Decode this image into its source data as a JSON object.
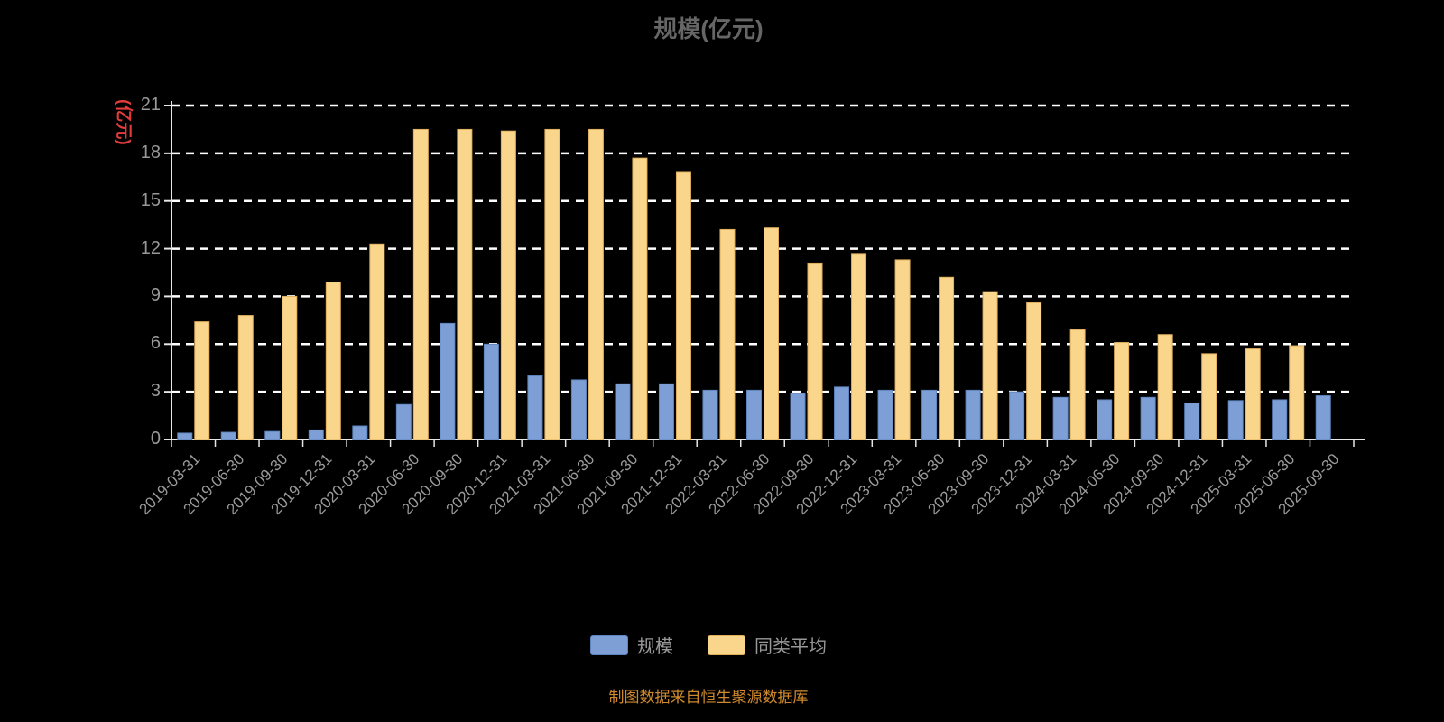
{
  "chart": {
    "title": "规模(亿元)",
    "y_axis_unit": "(亿元)",
    "footer": "制图数据来自恒生聚源数据库"
  },
  "colors": {
    "background": "#000000",
    "title_text": "#666666",
    "axis_line": "#e6e6e6",
    "grid_line": "#ffffff",
    "tick_label": "#999999",
    "y_unit_text": "#e23b3b",
    "footer_text": "#cf8a2d",
    "series_scale_fill": "#7e9fd5",
    "series_scale_border": "#5e85c0",
    "series_peer_fill": "#fad58c",
    "series_peer_border": "#dfaf5c"
  },
  "chart_data": {
    "type": "bar",
    "title": "规模(亿元)",
    "ylabel": "(亿元)",
    "xlabel": "",
    "ylim": [
      0,
      21
    ],
    "yticks": [
      0,
      3,
      6,
      9,
      12,
      15,
      18,
      21
    ],
    "grid": true,
    "grid_style": "dashed",
    "legend_position": "bottom",
    "footnote": "制图数据来自恒生聚源数据库",
    "categories": [
      "2019-03-31",
      "2019-06-30",
      "2019-09-30",
      "2019-12-31",
      "2020-03-31",
      "2020-06-30",
      "2020-09-30",
      "2020-12-31",
      "2021-03-31",
      "2021-06-30",
      "2021-09-30",
      "2021-12-31",
      "2022-03-31",
      "2022-06-30",
      "2022-09-30",
      "2022-12-31",
      "2023-03-31",
      "2023-06-30",
      "2023-09-30",
      "2023-12-31",
      "2024-03-31",
      "2024-06-30",
      "2024-09-30",
      "2024-12-31",
      "2025-03-31",
      "2025-06-30",
      "2025-09-30"
    ],
    "series": [
      {
        "name": "规模",
        "color": "#7e9fd5",
        "border_color": "#5e85c0",
        "values": [
          0.4,
          0.45,
          0.5,
          0.6,
          0.85,
          2.2,
          7.3,
          6.0,
          4.0,
          3.75,
          3.5,
          3.5,
          3.1,
          3.1,
          2.9,
          3.3,
          3.1,
          3.1,
          3.1,
          3.0,
          2.65,
          2.5,
          2.65,
          2.3,
          2.45,
          2.5,
          2.75
        ]
      },
      {
        "name": "同类平均",
        "color": "#fad58c",
        "border_color": "#dfaf5c",
        "values": [
          7.4,
          7.8,
          9.0,
          9.9,
          12.3,
          19.5,
          19.5,
          19.4,
          19.5,
          19.5,
          17.7,
          16.8,
          13.2,
          13.3,
          11.1,
          11.7,
          11.3,
          10.2,
          9.3,
          8.6,
          6.9,
          6.1,
          6.6,
          5.4,
          5.7,
          5.9,
          null
        ]
      }
    ]
  }
}
